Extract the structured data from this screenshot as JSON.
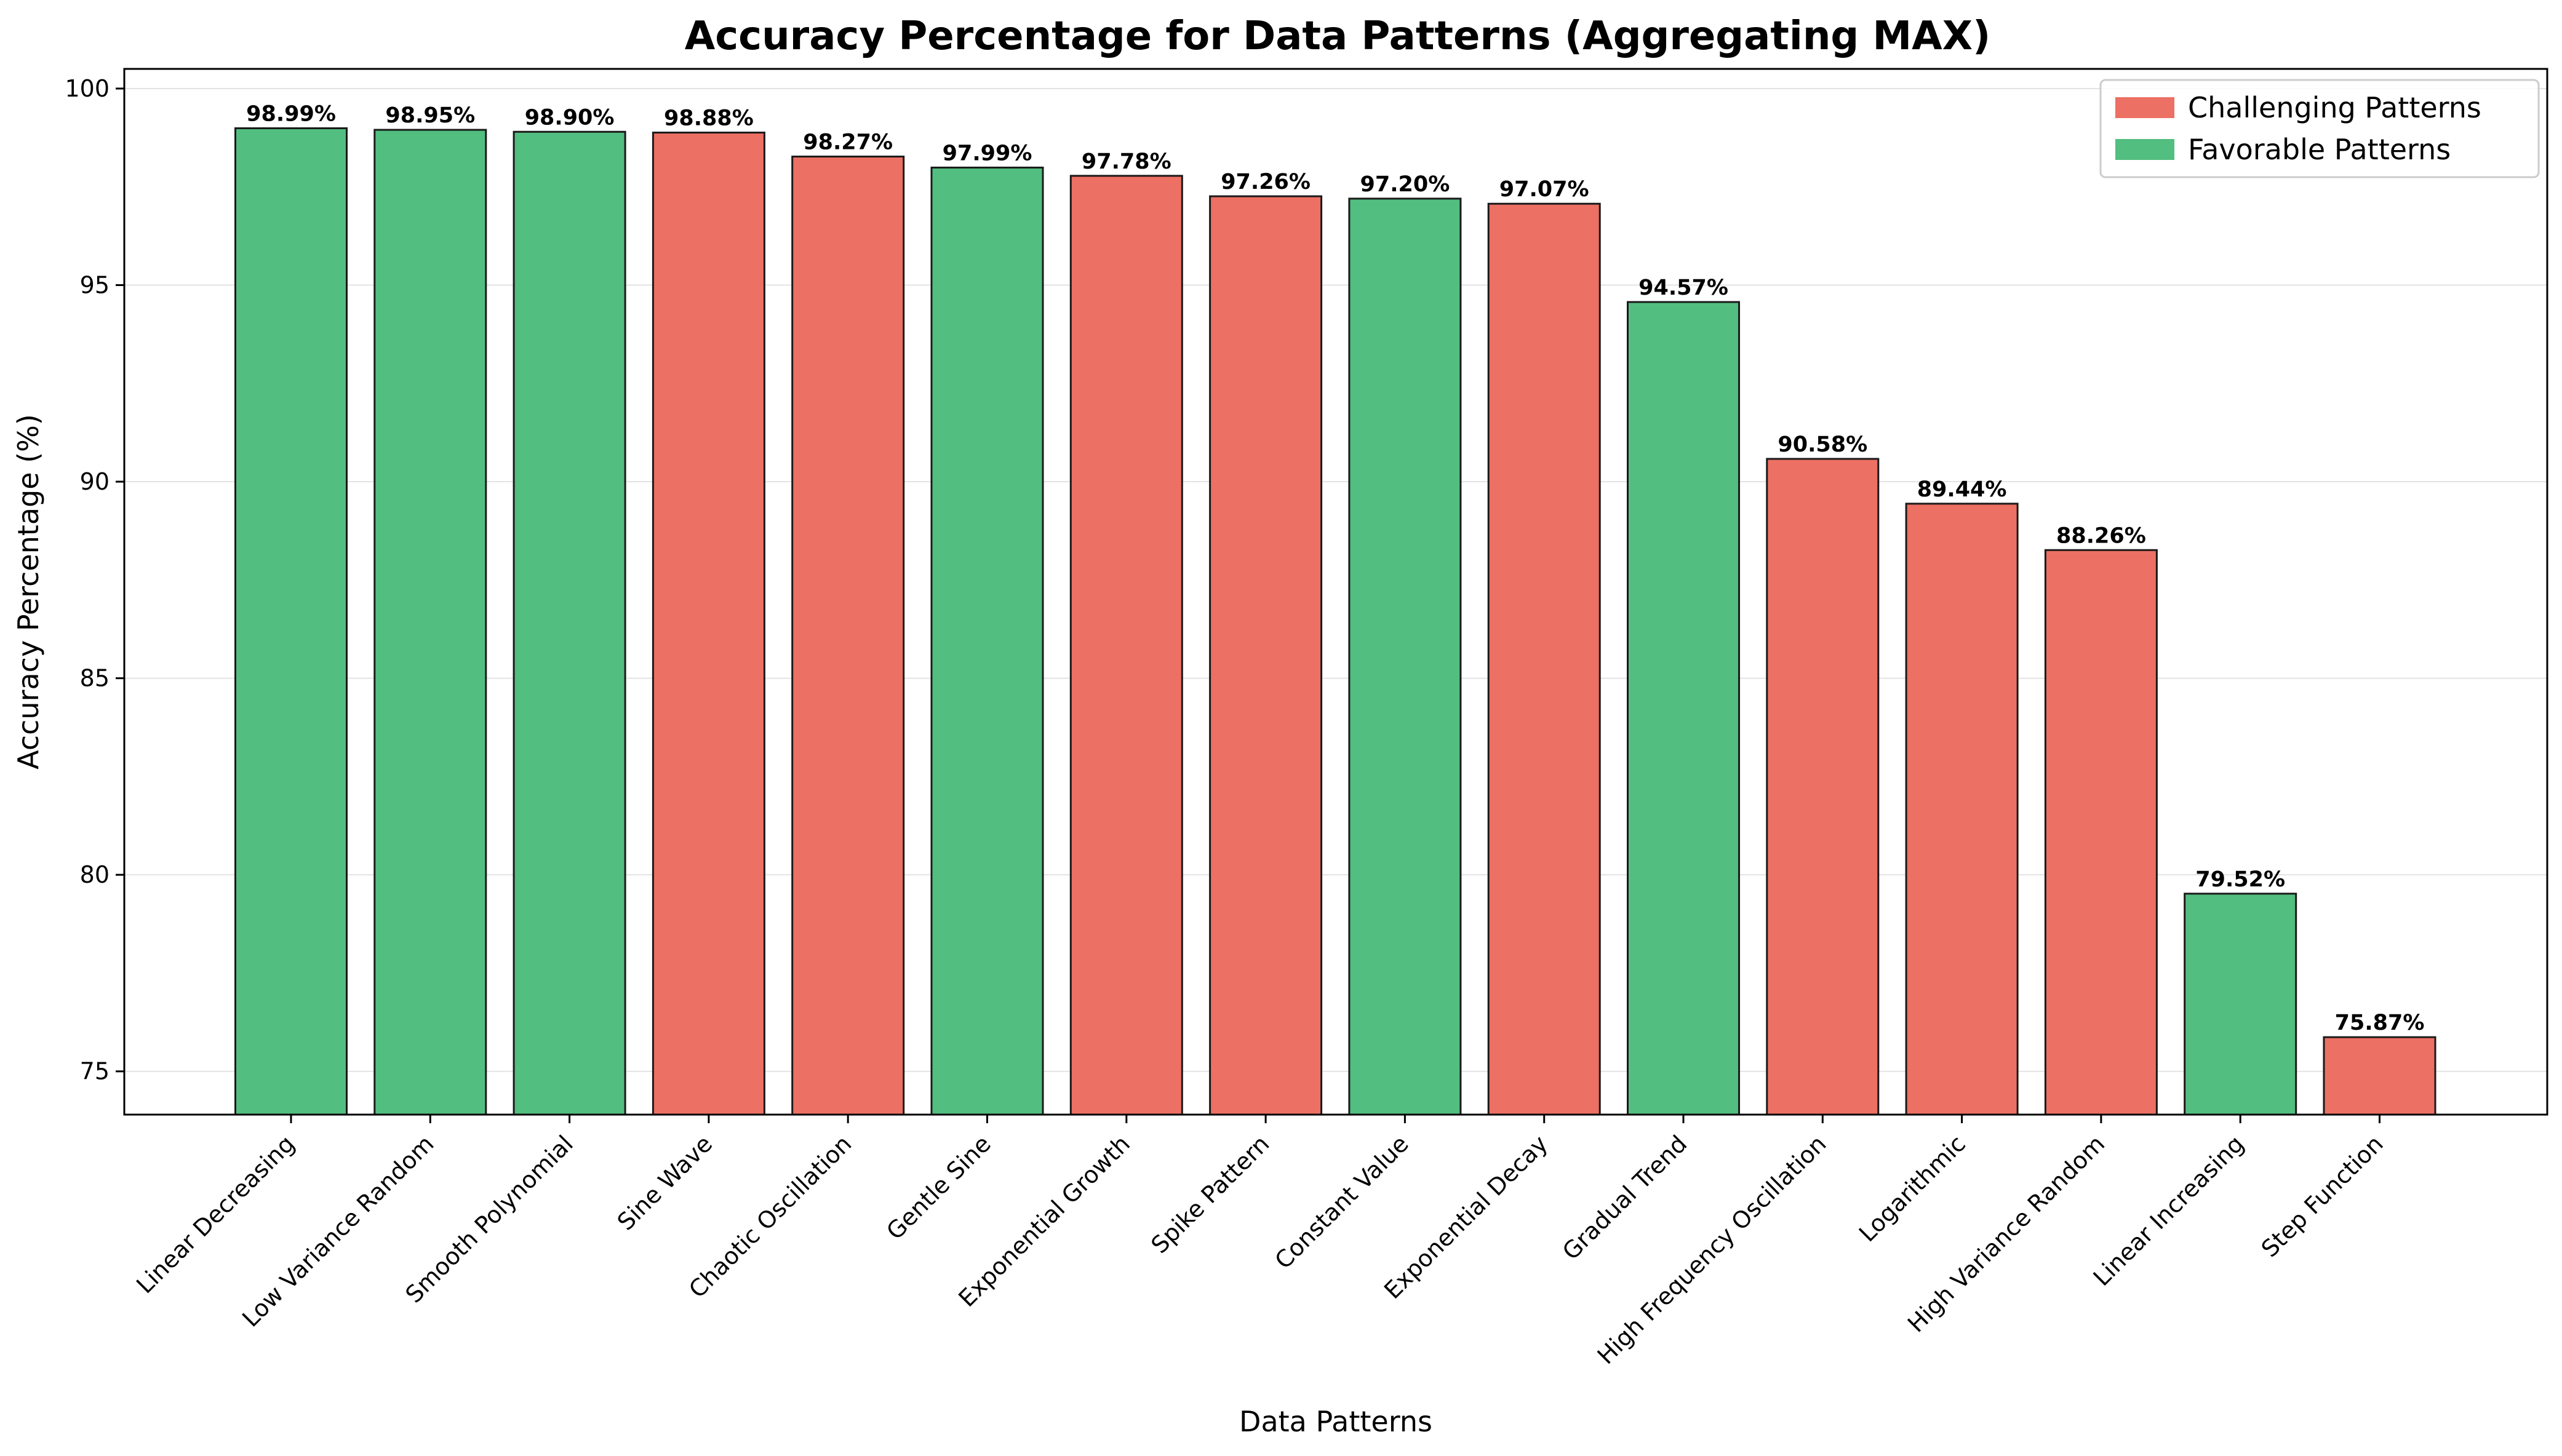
{
  "chart_data": {
    "type": "bar",
    "title": "Accuracy Percentage for Data Patterns (Aggregating MAX)",
    "xlabel": "Data Patterns",
    "ylabel": "Accuracy Percentage (%)",
    "ylim": [
      73.9,
      100.5
    ],
    "yticks": [
      75,
      80,
      85,
      90,
      95,
      100
    ],
    "grid": "y",
    "legend_position": "top-right",
    "colors": {
      "Challenging Patterns": "#ec7063",
      "Favorable Patterns": "#52be80"
    },
    "legend": [
      "Challenging Patterns",
      "Favorable Patterns"
    ],
    "categories": [
      "Linear Decreasing",
      "Low Variance Random",
      "Smooth Polynomial",
      "Sine Wave",
      "Chaotic Oscillation",
      "Gentle Sine",
      "Exponential Growth",
      "Spike Pattern",
      "Constant Value",
      "Exponential Decay",
      "Gradual Trend",
      "High Frequency Oscillation",
      "Logarithmic",
      "High Variance Random",
      "Linear Increasing",
      "Step Function"
    ],
    "values": [
      98.99,
      98.95,
      98.9,
      98.88,
      98.27,
      97.99,
      97.78,
      97.26,
      97.2,
      97.07,
      94.57,
      90.58,
      89.44,
      88.26,
      79.52,
      75.87
    ],
    "value_labels": [
      "98.99%",
      "98.95%",
      "98.90%",
      "98.88%",
      "98.27%",
      "97.99%",
      "97.78%",
      "97.26%",
      "97.20%",
      "97.07%",
      "94.57%",
      "90.58%",
      "89.44%",
      "88.26%",
      "79.52%",
      "75.87%"
    ],
    "groups": [
      "Favorable Patterns",
      "Favorable Patterns",
      "Favorable Patterns",
      "Challenging Patterns",
      "Challenging Patterns",
      "Favorable Patterns",
      "Challenging Patterns",
      "Challenging Patterns",
      "Favorable Patterns",
      "Challenging Patterns",
      "Favorable Patterns",
      "Challenging Patterns",
      "Challenging Patterns",
      "Challenging Patterns",
      "Favorable Patterns",
      "Challenging Patterns"
    ]
  }
}
